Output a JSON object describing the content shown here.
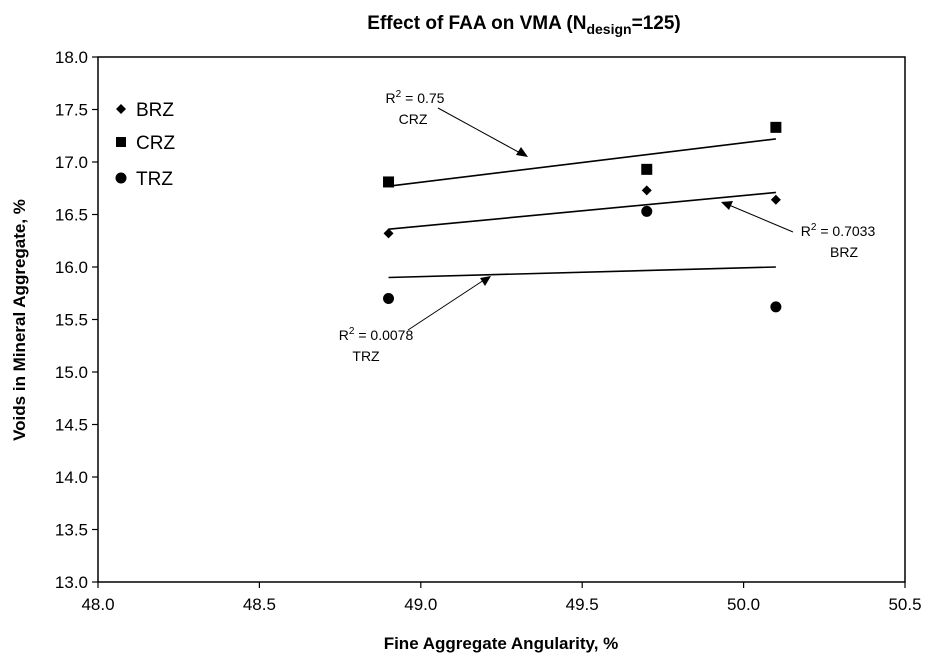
{
  "chart_data": {
    "type": "scatter",
    "title_main": "Effect of FAA on VMA (N",
    "title_sub": "design",
    "title_end": "=125)",
    "xlabel": "Fine Aggregate Angularity, %",
    "ylabel": "Voids in Mineral Aggregate, %",
    "xlim": [
      48.0,
      50.5
    ],
    "ylim": [
      13.0,
      18.0
    ],
    "x_ticks": [
      "48.0",
      "48.5",
      "49.0",
      "49.5",
      "50.0",
      "50.5"
    ],
    "y_ticks": [
      "13.0",
      "13.5",
      "14.0",
      "14.5",
      "15.0",
      "15.5",
      "16.0",
      "16.5",
      "17.0",
      "17.5",
      "18.0"
    ],
    "grid": false,
    "legend_position": "top-left",
    "series": [
      {
        "name": "BRZ",
        "marker": "diamond",
        "points": [
          [
            48.9,
            16.32
          ],
          [
            49.7,
            16.73
          ],
          [
            50.1,
            16.64
          ]
        ],
        "trendline": [
          [
            48.9,
            16.36
          ],
          [
            50.1,
            16.71
          ]
        ]
      },
      {
        "name": "CRZ",
        "marker": "square",
        "points": [
          [
            48.9,
            16.81
          ],
          [
            49.7,
            16.93
          ],
          [
            50.1,
            17.33
          ]
        ],
        "trendline": [
          [
            48.9,
            16.77
          ],
          [
            50.1,
            17.22
          ]
        ]
      },
      {
        "name": "TRZ",
        "marker": "circle",
        "points": [
          [
            48.9,
            15.7
          ],
          [
            49.7,
            16.53
          ],
          [
            50.1,
            15.62
          ]
        ],
        "trendline": [
          [
            48.9,
            15.9
          ],
          [
            50.1,
            16.0
          ]
        ]
      }
    ],
    "annotations": [
      {
        "r2_label": "R",
        "sup": "2",
        "r2_value": " = 0.75",
        "series_label": "CRZ"
      },
      {
        "r2_label": "R",
        "sup": "2",
        "r2_value": " = 0.7033",
        "series_label": "BRZ"
      },
      {
        "r2_label": "R",
        "sup": "2",
        "r2_value": " = 0.0078",
        "series_label": "TRZ"
      }
    ]
  }
}
